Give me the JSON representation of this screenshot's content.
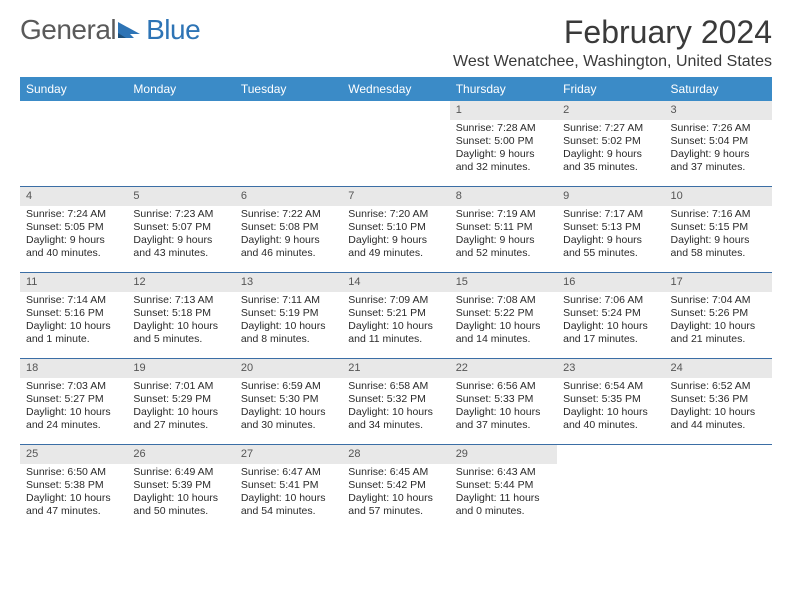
{
  "logo": {
    "general": "General",
    "blue": "Blue"
  },
  "month_title": "February 2024",
  "location": "West Wenatchee, Washington, United States",
  "colors": {
    "header_bg": "#3b8bc7",
    "header_text": "#ffffff",
    "day_bar_bg": "#e8e8e8",
    "row_border": "#3b6ea5",
    "logo_blue": "#2e74b5"
  },
  "day_headers": [
    "Sunday",
    "Monday",
    "Tuesday",
    "Wednesday",
    "Thursday",
    "Friday",
    "Saturday"
  ],
  "weeks": [
    [
      {
        "num": "",
        "sunrise": "",
        "sunset": "",
        "daylight": ""
      },
      {
        "num": "",
        "sunrise": "",
        "sunset": "",
        "daylight": ""
      },
      {
        "num": "",
        "sunrise": "",
        "sunset": "",
        "daylight": ""
      },
      {
        "num": "",
        "sunrise": "",
        "sunset": "",
        "daylight": ""
      },
      {
        "num": "1",
        "sunrise": "Sunrise: 7:28 AM",
        "sunset": "Sunset: 5:00 PM",
        "daylight": "Daylight: 9 hours and 32 minutes."
      },
      {
        "num": "2",
        "sunrise": "Sunrise: 7:27 AM",
        "sunset": "Sunset: 5:02 PM",
        "daylight": "Daylight: 9 hours and 35 minutes."
      },
      {
        "num": "3",
        "sunrise": "Sunrise: 7:26 AM",
        "sunset": "Sunset: 5:04 PM",
        "daylight": "Daylight: 9 hours and 37 minutes."
      }
    ],
    [
      {
        "num": "4",
        "sunrise": "Sunrise: 7:24 AM",
        "sunset": "Sunset: 5:05 PM",
        "daylight": "Daylight: 9 hours and 40 minutes."
      },
      {
        "num": "5",
        "sunrise": "Sunrise: 7:23 AM",
        "sunset": "Sunset: 5:07 PM",
        "daylight": "Daylight: 9 hours and 43 minutes."
      },
      {
        "num": "6",
        "sunrise": "Sunrise: 7:22 AM",
        "sunset": "Sunset: 5:08 PM",
        "daylight": "Daylight: 9 hours and 46 minutes."
      },
      {
        "num": "7",
        "sunrise": "Sunrise: 7:20 AM",
        "sunset": "Sunset: 5:10 PM",
        "daylight": "Daylight: 9 hours and 49 minutes."
      },
      {
        "num": "8",
        "sunrise": "Sunrise: 7:19 AM",
        "sunset": "Sunset: 5:11 PM",
        "daylight": "Daylight: 9 hours and 52 minutes."
      },
      {
        "num": "9",
        "sunrise": "Sunrise: 7:17 AM",
        "sunset": "Sunset: 5:13 PM",
        "daylight": "Daylight: 9 hours and 55 minutes."
      },
      {
        "num": "10",
        "sunrise": "Sunrise: 7:16 AM",
        "sunset": "Sunset: 5:15 PM",
        "daylight": "Daylight: 9 hours and 58 minutes."
      }
    ],
    [
      {
        "num": "11",
        "sunrise": "Sunrise: 7:14 AM",
        "sunset": "Sunset: 5:16 PM",
        "daylight": "Daylight: 10 hours and 1 minute."
      },
      {
        "num": "12",
        "sunrise": "Sunrise: 7:13 AM",
        "sunset": "Sunset: 5:18 PM",
        "daylight": "Daylight: 10 hours and 5 minutes."
      },
      {
        "num": "13",
        "sunrise": "Sunrise: 7:11 AM",
        "sunset": "Sunset: 5:19 PM",
        "daylight": "Daylight: 10 hours and 8 minutes."
      },
      {
        "num": "14",
        "sunrise": "Sunrise: 7:09 AM",
        "sunset": "Sunset: 5:21 PM",
        "daylight": "Daylight: 10 hours and 11 minutes."
      },
      {
        "num": "15",
        "sunrise": "Sunrise: 7:08 AM",
        "sunset": "Sunset: 5:22 PM",
        "daylight": "Daylight: 10 hours and 14 minutes."
      },
      {
        "num": "16",
        "sunrise": "Sunrise: 7:06 AM",
        "sunset": "Sunset: 5:24 PM",
        "daylight": "Daylight: 10 hours and 17 minutes."
      },
      {
        "num": "17",
        "sunrise": "Sunrise: 7:04 AM",
        "sunset": "Sunset: 5:26 PM",
        "daylight": "Daylight: 10 hours and 21 minutes."
      }
    ],
    [
      {
        "num": "18",
        "sunrise": "Sunrise: 7:03 AM",
        "sunset": "Sunset: 5:27 PM",
        "daylight": "Daylight: 10 hours and 24 minutes."
      },
      {
        "num": "19",
        "sunrise": "Sunrise: 7:01 AM",
        "sunset": "Sunset: 5:29 PM",
        "daylight": "Daylight: 10 hours and 27 minutes."
      },
      {
        "num": "20",
        "sunrise": "Sunrise: 6:59 AM",
        "sunset": "Sunset: 5:30 PM",
        "daylight": "Daylight: 10 hours and 30 minutes."
      },
      {
        "num": "21",
        "sunrise": "Sunrise: 6:58 AM",
        "sunset": "Sunset: 5:32 PM",
        "daylight": "Daylight: 10 hours and 34 minutes."
      },
      {
        "num": "22",
        "sunrise": "Sunrise: 6:56 AM",
        "sunset": "Sunset: 5:33 PM",
        "daylight": "Daylight: 10 hours and 37 minutes."
      },
      {
        "num": "23",
        "sunrise": "Sunrise: 6:54 AM",
        "sunset": "Sunset: 5:35 PM",
        "daylight": "Daylight: 10 hours and 40 minutes."
      },
      {
        "num": "24",
        "sunrise": "Sunrise: 6:52 AM",
        "sunset": "Sunset: 5:36 PM",
        "daylight": "Daylight: 10 hours and 44 minutes."
      }
    ],
    [
      {
        "num": "25",
        "sunrise": "Sunrise: 6:50 AM",
        "sunset": "Sunset: 5:38 PM",
        "daylight": "Daylight: 10 hours and 47 minutes."
      },
      {
        "num": "26",
        "sunrise": "Sunrise: 6:49 AM",
        "sunset": "Sunset: 5:39 PM",
        "daylight": "Daylight: 10 hours and 50 minutes."
      },
      {
        "num": "27",
        "sunrise": "Sunrise: 6:47 AM",
        "sunset": "Sunset: 5:41 PM",
        "daylight": "Daylight: 10 hours and 54 minutes."
      },
      {
        "num": "28",
        "sunrise": "Sunrise: 6:45 AM",
        "sunset": "Sunset: 5:42 PM",
        "daylight": "Daylight: 10 hours and 57 minutes."
      },
      {
        "num": "29",
        "sunrise": "Sunrise: 6:43 AM",
        "sunset": "Sunset: 5:44 PM",
        "daylight": "Daylight: 11 hours and 0 minutes."
      },
      {
        "num": "",
        "sunrise": "",
        "sunset": "",
        "daylight": ""
      },
      {
        "num": "",
        "sunrise": "",
        "sunset": "",
        "daylight": ""
      }
    ]
  ]
}
